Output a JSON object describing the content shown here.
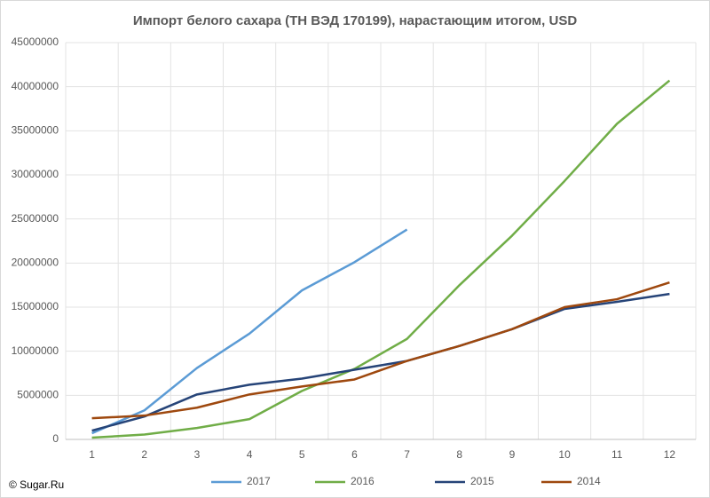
{
  "chart_data": {
    "type": "line",
    "title": "Импорт белого сахара (ТН ВЭД 170199), нарастающим итогом, USD",
    "categories": [
      "1",
      "2",
      "3",
      "4",
      "5",
      "6",
      "7",
      "8",
      "9",
      "10",
      "11",
      "12"
    ],
    "series": [
      {
        "name": "2017",
        "color": "#5b9bd5",
        "values": [
          700000,
          3300000,
          8100000,
          12000000,
          16900000,
          20100000,
          23800000,
          null,
          null,
          null,
          null,
          null
        ]
      },
      {
        "name": "2016",
        "color": "#70ad47",
        "values": [
          200000,
          550000,
          1300000,
          2300000,
          5500000,
          8000000,
          11400000,
          17500000,
          23100000,
          29300000,
          35800000,
          40700000
        ]
      },
      {
        "name": "2015",
        "color": "#264478",
        "values": [
          1000000,
          2600000,
          5100000,
          6200000,
          6900000,
          7900000,
          8900000,
          10600000,
          12500000,
          14800000,
          15600000,
          16500000
        ]
      },
      {
        "name": "2014",
        "color": "#9e480e",
        "values": [
          2400000,
          2700000,
          3600000,
          5100000,
          6000000,
          6800000,
          8900000,
          10600000,
          12500000,
          15000000,
          15900000,
          17800000
        ]
      }
    ],
    "ylim": [
      0,
      45000000
    ],
    "yticks": [
      0,
      5000000,
      10000000,
      15000000,
      20000000,
      25000000,
      30000000,
      35000000,
      40000000,
      45000000
    ],
    "grid": true,
    "legend": "bottom",
    "credit": "© Sugar.Ru"
  }
}
